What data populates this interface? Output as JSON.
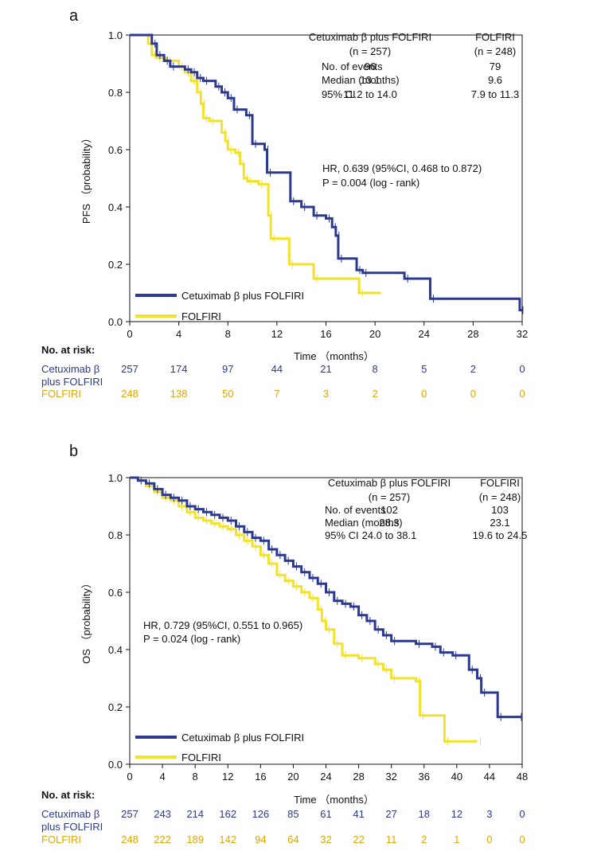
{
  "colors": {
    "cetuximab": "#2B3990",
    "folfiri": "#F2E22A",
    "risk_folfiri": "#E0A500",
    "axis": "#111111"
  },
  "chart_data": [
    {
      "panel_label": "a",
      "type": "line",
      "ylabel": "PFS （probability）",
      "xlabel": "Time （months）",
      "xlim": [
        0,
        32
      ],
      "ylim": [
        0,
        1.0
      ],
      "xticks": [
        "0",
        "4",
        "8",
        "12",
        "16",
        "20",
        "24",
        "28",
        "32"
      ],
      "yticks": [
        "0.0",
        "0.2",
        "0.4",
        "0.6",
        "0.8",
        "1.0"
      ],
      "grid": false,
      "legend_position": "bottom-left",
      "table": {
        "col_headers": [
          "Cetuximab β plus FOLFIRI",
          "FOLFIRI"
        ],
        "col_subheaders": [
          "(n = 257)",
          "(n = 248)"
        ],
        "rows": [
          {
            "label": "No. of events",
            "values": [
              "96",
              "79"
            ]
          },
          {
            "label": "Median (months)",
            "values": [
              "13.1",
              "9.6"
            ]
          },
          {
            "label": "95% CI",
            "values": [
              "11.2 to 14.0",
              "7.9 to 11.3"
            ]
          }
        ]
      },
      "annotation": [
        "HR, 0.639 (95%CI, 0.468 to 0.872)",
        "P = 0.004 (log - rank)"
      ],
      "series": [
        {
          "name": "Cetuximab β plus FOLFIRI",
          "steps": [
            [
              0,
              1.0
            ],
            [
              1.8,
              0.97
            ],
            [
              2.2,
              0.93
            ],
            [
              2.8,
              0.91
            ],
            [
              3.3,
              0.89
            ],
            [
              4.5,
              0.88
            ],
            [
              5,
              0.87
            ],
            [
              5.5,
              0.85
            ],
            [
              6,
              0.84
            ],
            [
              7,
              0.82
            ],
            [
              7.5,
              0.8
            ],
            [
              8,
              0.78
            ],
            [
              8.5,
              0.74
            ],
            [
              9.5,
              0.72
            ],
            [
              10,
              0.62
            ],
            [
              11,
              0.6
            ],
            [
              11.2,
              0.52
            ],
            [
              13.1,
              0.42
            ],
            [
              14,
              0.4
            ],
            [
              15,
              0.37
            ],
            [
              16,
              0.36
            ],
            [
              16.5,
              0.33
            ],
            [
              16.8,
              0.3
            ],
            [
              17,
              0.22
            ],
            [
              18.5,
              0.18
            ],
            [
              19,
              0.17
            ],
            [
              22.4,
              0.15
            ],
            [
              24.5,
              0.08
            ],
            [
              31.8,
              0.04
            ]
          ],
          "end": 32
        },
        {
          "name": "FOLFIRI",
          "steps": [
            [
              0,
              1.0
            ],
            [
              1.5,
              0.97
            ],
            [
              1.8,
              0.93
            ],
            [
              2.2,
              0.92
            ],
            [
              3,
              0.91
            ],
            [
              4,
              0.89
            ],
            [
              4.5,
              0.87
            ],
            [
              5,
              0.84
            ],
            [
              5.5,
              0.8
            ],
            [
              5.8,
              0.76
            ],
            [
              6,
              0.71
            ],
            [
              6.5,
              0.7
            ],
            [
              7.5,
              0.66
            ],
            [
              7.8,
              0.63
            ],
            [
              8,
              0.6
            ],
            [
              8.6,
              0.59
            ],
            [
              9,
              0.55
            ],
            [
              9.3,
              0.5
            ],
            [
              9.6,
              0.49
            ],
            [
              10.5,
              0.48
            ],
            [
              11.3,
              0.37
            ],
            [
              11.5,
              0.29
            ],
            [
              13,
              0.2
            ],
            [
              15,
              0.15
            ],
            [
              18.7,
              0.1
            ]
          ],
          "end": 20.5
        }
      ],
      "risk": {
        "title": "No. at risk:",
        "rows": [
          {
            "label1": "Cetuximab β",
            "label2": "plus FOLFIRI",
            "values": [
              "257",
              "174",
              "97",
              "44",
              "21",
              "8",
              "5",
              "2",
              "0"
            ]
          },
          {
            "label1": "FOLFIRI",
            "label2": "",
            "values": [
              "248",
              "138",
              "50",
              "7",
              "3",
              "2",
              "0",
              "0",
              "0"
            ]
          }
        ]
      }
    },
    {
      "panel_label": "b",
      "type": "line",
      "ylabel": "OS （probability）",
      "xlabel": "Time （months）",
      "xlim": [
        0,
        48
      ],
      "ylim": [
        0,
        1.0
      ],
      "xticks": [
        "0",
        "4",
        "8",
        "12",
        "16",
        "20",
        "24",
        "28",
        "32",
        "36",
        "40",
        "44",
        "48"
      ],
      "yticks": [
        "0.0",
        "0.2",
        "0.4",
        "0.6",
        "0.8",
        "1.0"
      ],
      "grid": false,
      "legend_position": "bottom-left",
      "table": {
        "col_headers": [
          "Cetuximab β plus FOLFIRI",
          "FOLFIRI"
        ],
        "col_subheaders": [
          "(n = 257)",
          "(n = 248)"
        ],
        "rows": [
          {
            "label": "No. of events",
            "values": [
              "102",
              "103"
            ]
          },
          {
            "label": "Median (months)",
            "values": [
              "28.3",
              "23.1"
            ]
          },
          {
            "label": "95% CI",
            "values": [
              "24.0 to 38.1",
              "19.6 to 24.5"
            ]
          }
        ]
      },
      "annotation": [
        "HR, 0.729 (95%CI, 0.551 to 0.965)",
        "P = 0.024 (log - rank)"
      ],
      "series": [
        {
          "name": "Cetuximab β plus FOLFIRI",
          "steps": [
            [
              0,
              1.0
            ],
            [
              1,
              0.99
            ],
            [
              2,
              0.98
            ],
            [
              3,
              0.96
            ],
            [
              4,
              0.94
            ],
            [
              5,
              0.93
            ],
            [
              6,
              0.92
            ],
            [
              7,
              0.9
            ],
            [
              8,
              0.89
            ],
            [
              9,
              0.88
            ],
            [
              10,
              0.87
            ],
            [
              11,
              0.86
            ],
            [
              12,
              0.85
            ],
            [
              13,
              0.83
            ],
            [
              14,
              0.81
            ],
            [
              15,
              0.79
            ],
            [
              16,
              0.78
            ],
            [
              17,
              0.75
            ],
            [
              18,
              0.73
            ],
            [
              19,
              0.71
            ],
            [
              20,
              0.69
            ],
            [
              21,
              0.67
            ],
            [
              22,
              0.65
            ],
            [
              23,
              0.63
            ],
            [
              24,
              0.6
            ],
            [
              25,
              0.57
            ],
            [
              26,
              0.56
            ],
            [
              27,
              0.55
            ],
            [
              28,
              0.52
            ],
            [
              29,
              0.5
            ],
            [
              30,
              0.47
            ],
            [
              31,
              0.45
            ],
            [
              32,
              0.43
            ],
            [
              35,
              0.42
            ],
            [
              37,
              0.41
            ],
            [
              38,
              0.39
            ],
            [
              39.5,
              0.38
            ],
            [
              41.5,
              0.33
            ],
            [
              42.5,
              0.3
            ],
            [
              43,
              0.25
            ],
            [
              45,
              0.165
            ],
            [
              47.5,
              0.165
            ]
          ],
          "end": 48
        },
        {
          "name": "FOLFIRI",
          "steps": [
            [
              0,
              1.0
            ],
            [
              1,
              0.99
            ],
            [
              2,
              0.97
            ],
            [
              3,
              0.95
            ],
            [
              4,
              0.93
            ],
            [
              5,
              0.92
            ],
            [
              6,
              0.9
            ],
            [
              7,
              0.88
            ],
            [
              8,
              0.86
            ],
            [
              9,
              0.85
            ],
            [
              10,
              0.84
            ],
            [
              11,
              0.83
            ],
            [
              12,
              0.82
            ],
            [
              13,
              0.8
            ],
            [
              14,
              0.78
            ],
            [
              15,
              0.76
            ],
            [
              16,
              0.73
            ],
            [
              17,
              0.7
            ],
            [
              18,
              0.66
            ],
            [
              19,
              0.64
            ],
            [
              20,
              0.62
            ],
            [
              21,
              0.6
            ],
            [
              22,
              0.58
            ],
            [
              23,
              0.54
            ],
            [
              23.5,
              0.5
            ],
            [
              24,
              0.47
            ],
            [
              25,
              0.42
            ],
            [
              26,
              0.38
            ],
            [
              28,
              0.37
            ],
            [
              30,
              0.35
            ],
            [
              31,
              0.33
            ],
            [
              32,
              0.3
            ],
            [
              35,
              0.29
            ],
            [
              35.5,
              0.17
            ],
            [
              38.5,
              0.08
            ],
            [
              42.5,
              0.08
            ]
          ],
          "end": 42.5
        }
      ],
      "risk": {
        "title": "No. at risk:",
        "rows": [
          {
            "label1": "Cetuximab β",
            "label2": "plus FOLFIRI",
            "values": [
              "257",
              "243",
              "214",
              "162",
              "126",
              "85",
              "61",
              "41",
              "27",
              "18",
              "12",
              "3",
              "0"
            ]
          },
          {
            "label1": "FOLFIRI",
            "label2": "",
            "values": [
              "248",
              "222",
              "189",
              "142",
              "94",
              "64",
              "32",
              "22",
              "11",
              "2",
              "1",
              "0",
              "0"
            ]
          }
        ]
      }
    }
  ]
}
